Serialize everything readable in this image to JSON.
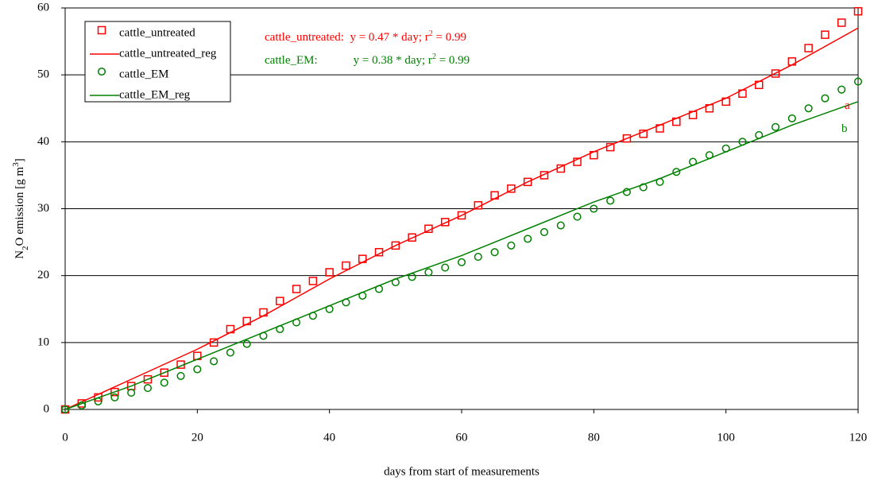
{
  "chart_data": {
    "type": "scatter",
    "xlabel": "days from start of measurements",
    "ylabel": [
      "N",
      "2",
      "O emission [g m",
      "3",
      "]"
    ],
    "xlim": [
      0,
      120
    ],
    "xticks": [
      0,
      20,
      40,
      60,
      80,
      100,
      120
    ],
    "ylim": [
      0,
      60
    ],
    "yticks": [
      0,
      10,
      20,
      30,
      40,
      50,
      60
    ],
    "grid": true,
    "legend": "upper left",
    "series": [
      {
        "name": "cattle_untreated",
        "color": "#ff0000",
        "marker": "square",
        "x": [
          0,
          2.5,
          5,
          7.5,
          10,
          12.5,
          15,
          17.5,
          20,
          22.5,
          25,
          27.5,
          30,
          32.5,
          35,
          37.5,
          40,
          42.5,
          45,
          47.5,
          50,
          52.5,
          55,
          57.5,
          60,
          62.5,
          65,
          67.5,
          70,
          72.5,
          75,
          77.5,
          80,
          82.5,
          85,
          87.5,
          90,
          92.5,
          95,
          97.5,
          100,
          102.5,
          105,
          107.5,
          110,
          112.5,
          115,
          117.5,
          120
        ],
        "values": [
          0,
          0.9,
          1.8,
          2.6,
          3.5,
          4.5,
          5.5,
          6.7,
          8,
          10,
          12,
          13.2,
          14.5,
          16.2,
          18,
          19.2,
          20.5,
          21.5,
          22.5,
          23.5,
          24.5,
          25.7,
          27,
          28,
          29,
          30.5,
          32,
          33,
          34,
          35,
          36,
          37,
          38,
          39.2,
          40.5,
          41.2,
          42,
          43,
          44,
          45,
          46,
          47.2,
          48.5,
          50.2,
          52,
          54,
          56,
          57.8,
          59.5
        ]
      },
      {
        "name": "cattle_untreated_reg",
        "color": "#ff0000",
        "marker": "line",
        "x": [
          0,
          10,
          20,
          30,
          40,
          50,
          60,
          70,
          80,
          90,
          100,
          110,
          120
        ],
        "values": [
          0,
          4.5,
          9,
          14,
          19.5,
          24.5,
          29,
          34,
          38.5,
          42.5,
          46.5,
          51.5,
          57
        ]
      },
      {
        "name": "cattle_EM",
        "color": "#008000",
        "marker": "circle",
        "x": [
          0,
          2.5,
          5,
          7.5,
          10,
          12.5,
          15,
          17.5,
          20,
          22.5,
          25,
          27.5,
          30,
          32.5,
          35,
          37.5,
          40,
          42.5,
          45,
          47.5,
          50,
          52.5,
          55,
          57.5,
          60,
          62.5,
          65,
          67.5,
          70,
          72.5,
          75,
          77.5,
          80,
          82.5,
          85,
          87.5,
          90,
          92.5,
          95,
          97.5,
          100,
          102.5,
          105,
          107.5,
          110,
          112.5,
          115,
          117.5,
          120
        ],
        "values": [
          0,
          0.6,
          1.2,
          1.8,
          2.5,
          3.2,
          4,
          5,
          6,
          7.2,
          8.5,
          9.8,
          11,
          12,
          13,
          14,
          15,
          16,
          17,
          18,
          19,
          19.8,
          20.5,
          21.2,
          22,
          22.8,
          23.5,
          24.5,
          25.5,
          26.5,
          27.5,
          28.8,
          30,
          31.2,
          32.5,
          33.2,
          34,
          35.5,
          37,
          38,
          39,
          40,
          41,
          42.2,
          43.5,
          45,
          46.5,
          47.8,
          49
        ]
      },
      {
        "name": "cattle_EM_reg",
        "color": "#008000",
        "marker": "line",
        "x": [
          0,
          10,
          20,
          30,
          40,
          50,
          60,
          70,
          80,
          90,
          100,
          110,
          120
        ],
        "values": [
          0,
          3.5,
          7.5,
          11.5,
          15.5,
          19.5,
          23,
          27,
          31,
          34.5,
          38.5,
          42.5,
          46
        ]
      }
    ],
    "annotations": [
      {
        "text": "cattle_untreated:  y = 0.47 * day; r",
        "sup": "2",
        "rest": " = 0.99",
        "color": "#ff0000"
      },
      {
        "text": "cattle_EM:            y = 0.38 * day; r",
        "sup": "2",
        "rest": " = 0.99",
        "color": "#008000"
      },
      {
        "text": "a",
        "color": "#ff0000"
      },
      {
        "text": "b",
        "color": "#008000"
      }
    ]
  }
}
